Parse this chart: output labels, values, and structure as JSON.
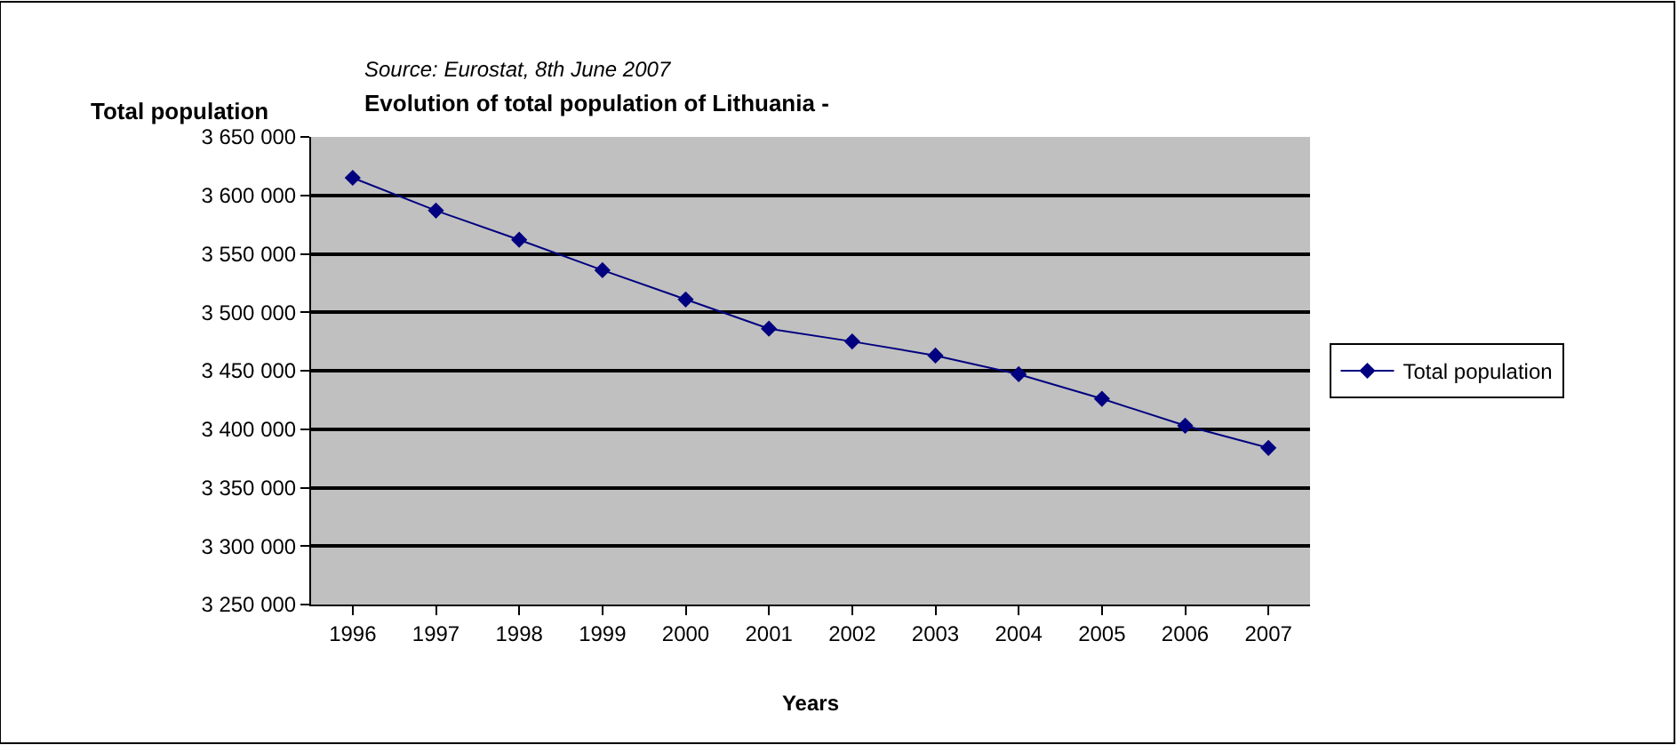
{
  "chart_data": {
    "type": "line",
    "title": "Evolution of total population of Lithuania -",
    "xlabel": "Years",
    "ylabel": "Total population",
    "annotations": [
      "Source: Eurostat, 8th June 2007"
    ],
    "categories": [
      "1996",
      "1997",
      "1998",
      "1999",
      "2000",
      "2001",
      "2002",
      "2003",
      "2004",
      "2005",
      "2006",
      "2007"
    ],
    "series": [
      {
        "name": "Total population",
        "color": "#000080",
        "values": [
          3615000,
          3587000,
          3562000,
          3536000,
          3511000,
          3486000,
          3475000,
          3463000,
          3447000,
          3426000,
          3403000,
          3384000
        ]
      }
    ],
    "ylim": [
      3250000,
      3650000
    ],
    "yticks": [
      {
        "value": 3250000,
        "label": "3 250 000"
      },
      {
        "value": 3300000,
        "label": "3 300 000"
      },
      {
        "value": 3350000,
        "label": "3 350 000"
      },
      {
        "value": 3400000,
        "label": "3 400 000"
      },
      {
        "value": 3450000,
        "label": "3 450 000"
      },
      {
        "value": 3500000,
        "label": "3 500 000"
      },
      {
        "value": 3550000,
        "label": "3 550 000"
      },
      {
        "value": 3600000,
        "label": "3 600 000"
      },
      {
        "value": 3650000,
        "label": "3 650 000"
      }
    ],
    "grid": "y",
    "legend": "right",
    "marker": "diamond",
    "line_style": "solid"
  }
}
